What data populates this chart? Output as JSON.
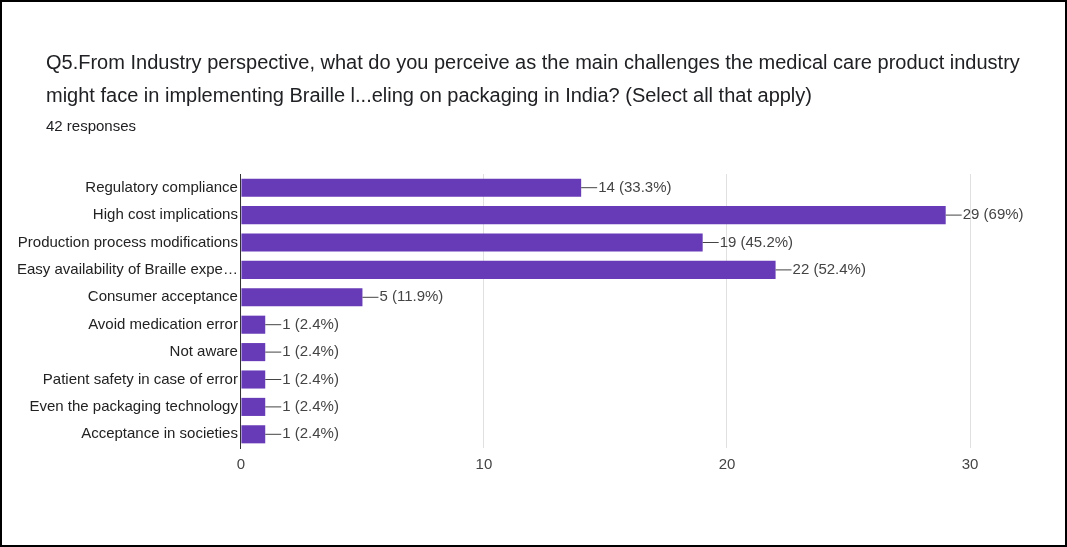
{
  "chart_data": {
    "type": "bar",
    "orientation": "horizontal",
    "title": "Q5.From Industry perspective, what do you perceive as the main challenges the medical care product industry might face in implementing Braille l...eling on packaging in India? (Select all that apply)",
    "subtitle": "42 responses",
    "categories": [
      "Regulatory compliance",
      "High cost implications",
      "Production process modifications",
      "Easy availability of Braille expe…",
      "Consumer acceptance",
      "Avoid medication error",
      "Not aware",
      "Patient safety in case of error",
      "Even the packaging technology",
      "Acceptance in societies"
    ],
    "values": [
      14,
      29,
      19,
      22,
      5,
      1,
      1,
      1,
      1,
      1
    ],
    "value_labels": [
      "14 (33.3%)",
      "29 (69%)",
      "19 (45.2%)",
      "22 (52.4%)",
      "5 (11.9%)",
      "1 (2.4%)",
      "1 (2.4%)",
      "1 (2.4%)",
      "1 (2.4%)",
      "1 (2.4%)"
    ],
    "color": "#673ab7",
    "xlim": [
      0,
      30
    ],
    "xticks": [
      0,
      10,
      20,
      30
    ],
    "grid": "x"
  }
}
